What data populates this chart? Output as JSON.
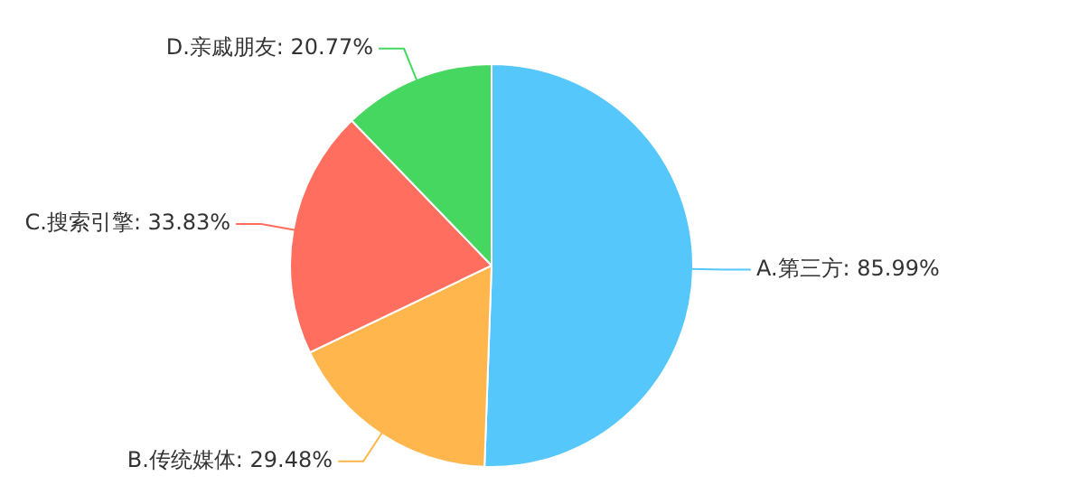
{
  "chart_data": {
    "type": "pie",
    "categories": [
      "A.第三方",
      "B.传统媒体",
      "C.搜索引擎",
      "D.亲戚朋友"
    ],
    "values": [
      85.99,
      29.48,
      33.83,
      20.77
    ],
    "value_labels": [
      "85.99%",
      "29.48%",
      "33.83%",
      "20.77%"
    ],
    "colors": [
      "#56c7fb",
      "#ffb64c",
      "#ff6e5f",
      "#46d760"
    ],
    "legend": false
  }
}
